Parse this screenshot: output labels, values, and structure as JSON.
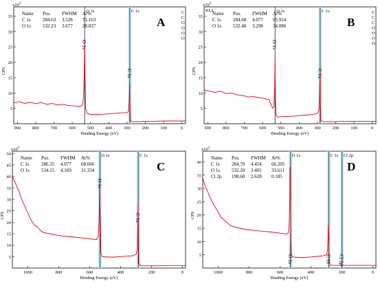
{
  "chart_data": [
    {
      "type": "line",
      "panel_letter": "A",
      "exponent_label": "x10",
      "exponent_power": "3",
      "ylabel": "CPS",
      "xlabel": "Binding Energy (eV)",
      "xlim": [
        920,
        -20
      ],
      "ylim": [
        0,
        38
      ],
      "xticks": [
        900,
        800,
        700,
        600,
        500,
        400,
        300,
        200,
        100,
        0
      ],
      "yticks": [
        5,
        10,
        15,
        20,
        25,
        30,
        35
      ],
      "table": {
        "headers": [
          "Name",
          "Pos.",
          "FWHM",
          "At%"
        ],
        "rows": [
          [
            "C 1s",
            "284.63",
            "3.528",
            "71.163"
          ],
          [
            "O 1s",
            "532.23",
            "3.677",
            "28.837"
          ]
        ]
      },
      "peak_markers": [
        {
          "label": "O 1s",
          "x": 532,
          "axis_label": "O 1s",
          "band": false
        },
        {
          "label": "C 1s",
          "x": 285,
          "axis_label": "C 1s",
          "band": true
        }
      ],
      "right_labels": [
        "C",
        "C",
        "O",
        "O",
        "O",
        "O"
      ],
      "series": [
        {
          "color": "#e8000b",
          "points": [
            [
              920,
              6.8
            ],
            [
              890,
              7.2
            ],
            [
              860,
              6.6
            ],
            [
              830,
              7.0
            ],
            [
              800,
              6.5
            ],
            [
              770,
              6.9
            ],
            [
              740,
              6.3
            ],
            [
              710,
              6.6
            ],
            [
              680,
              6.1
            ],
            [
              650,
              6.3
            ],
            [
              620,
              5.9
            ],
            [
              590,
              5.8
            ],
            [
              560,
              5.6
            ],
            [
              545,
              5.9
            ],
            [
              540,
              7.5
            ],
            [
              536,
              12.0
            ],
            [
              534,
              18.5
            ],
            [
              532,
              27.0
            ],
            [
              530,
              15.0
            ],
            [
              527,
              5.0
            ],
            [
              520,
              3.4
            ],
            [
              500,
              3.0
            ],
            [
              460,
              3.0
            ],
            [
              420,
              3.1
            ],
            [
              380,
              3.3
            ],
            [
              340,
              3.5
            ],
            [
              300,
              3.6
            ],
            [
              292,
              4.0
            ],
            [
              288,
              8.0
            ],
            [
              286,
              13.5
            ],
            [
              285,
              9.0
            ],
            [
              282,
              1.0
            ],
            [
              270,
              0.7
            ],
            [
              240,
              0.7
            ],
            [
              200,
              0.8
            ],
            [
              150,
              0.8
            ],
            [
              100,
              0.9
            ],
            [
              50,
              0.9
            ],
            [
              0,
              0.9
            ],
            [
              -20,
              0.9
            ]
          ]
        }
      ]
    },
    {
      "type": "line",
      "panel_letter": "B",
      "exponent_label": "x10",
      "exponent_power": "3",
      "ylabel": "CPS",
      "xlabel": "Binding Energy (eV)",
      "xlim": [
        920,
        -20
      ],
      "ylim": [
        0,
        38
      ],
      "xticks": [
        900,
        800,
        700,
        600,
        500,
        400,
        300,
        200,
        100,
        0
      ],
      "yticks": [
        5,
        10,
        15,
        20,
        25,
        30,
        35
      ],
      "table": {
        "headers": [
          "Name",
          "Pos.",
          "FWHM",
          "At%"
        ],
        "rows": [
          [
            "C 1s",
            "284.68",
            "4.077",
            "65.914"
          ],
          [
            "O 1s",
            "532.48",
            "3.298",
            "34.086"
          ]
        ]
      },
      "top_left_label": "KLL",
      "peak_markers": [
        {
          "label": "O 1s",
          "x": 532,
          "axis_label": "O 1s",
          "band": false
        },
        {
          "label": "C 1s",
          "x": 285,
          "axis_label": "C 1s",
          "band": true
        }
      ],
      "right_labels": [
        "C",
        "C",
        "C",
        "O",
        "O",
        "O",
        "O"
      ],
      "series": [
        {
          "color": "#e8000b",
          "points": [
            [
              920,
              11.0
            ],
            [
              890,
              10.6
            ],
            [
              860,
              10.2
            ],
            [
              830,
              10.6
            ],
            [
              800,
              9.8
            ],
            [
              770,
              10.0
            ],
            [
              740,
              9.4
            ],
            [
              710,
              9.2
            ],
            [
              680,
              8.7
            ],
            [
              650,
              8.8
            ],
            [
              620,
              8.5
            ],
            [
              590,
              8.2
            ],
            [
              565,
              7.8
            ],
            [
              552,
              6.0
            ],
            [
              545,
              5.0
            ],
            [
              538,
              5.5
            ],
            [
              534,
              12.0
            ],
            [
              532,
              22.0
            ],
            [
              530,
              8.0
            ],
            [
              527,
              3.0
            ],
            [
              520,
              2.2
            ],
            [
              490,
              2.3
            ],
            [
              450,
              2.4
            ],
            [
              410,
              2.6
            ],
            [
              370,
              2.8
            ],
            [
              330,
              3.0
            ],
            [
              300,
              3.3
            ],
            [
              292,
              4.5
            ],
            [
              288,
              10.0
            ],
            [
              286,
              17.0
            ],
            [
              285,
              13.0
            ],
            [
              282,
              1.0
            ],
            [
              270,
              0.7
            ],
            [
              240,
              0.7
            ],
            [
              200,
              0.7
            ],
            [
              150,
              0.8
            ],
            [
              100,
              0.8
            ],
            [
              50,
              0.8
            ],
            [
              0,
              0.8
            ],
            [
              -20,
              0.8
            ]
          ]
        }
      ]
    },
    {
      "type": "line",
      "panel_letter": "C",
      "exponent_label": "x10",
      "exponent_power": "3",
      "ylabel": "CPS",
      "xlabel": "Binding Energy (eV)",
      "xlim": [
        1100,
        -20
      ],
      "ylim": [
        0,
        51
      ],
      "xticks": [
        1000,
        800,
        600,
        400,
        200,
        0
      ],
      "yticks": [
        5,
        10,
        15,
        20,
        25,
        30,
        35,
        40,
        45,
        50
      ],
      "table": {
        "headers": [
          "Name",
          "Pos.",
          "FWHM",
          "At%"
        ],
        "rows": [
          [
            "C 1s",
            "286.35",
            "4.077",
            "68.666"
          ],
          [
            "O 1s",
            "534.15",
            "4.169",
            "31.334"
          ]
        ]
      },
      "peak_markers": [
        {
          "label": "O 1s",
          "x": 534,
          "axis_label": "O 1s",
          "band": true
        },
        {
          "label": "C 1s",
          "x": 286,
          "axis_label": "C 1s",
          "band": true
        }
      ],
      "right_labels": [],
      "series": [
        {
          "color": "#e8000b",
          "points": [
            [
              1100,
              40
            ],
            [
              1080,
              37
            ],
            [
              1060,
              34
            ],
            [
              1040,
              30
            ],
            [
              1020,
              27
            ],
            [
              1000,
              24
            ],
            [
              980,
              21
            ],
            [
              960,
              19
            ],
            [
              940,
              18
            ],
            [
              920,
              16.5
            ],
            [
              900,
              15.5
            ],
            [
              860,
              15
            ],
            [
              820,
              14.5
            ],
            [
              780,
              14
            ],
            [
              740,
              13.8
            ],
            [
              700,
              13.5
            ],
            [
              660,
              13.2
            ],
            [
              620,
              13
            ],
            [
              580,
              12.6
            ],
            [
              555,
              12.4
            ],
            [
              545,
              14
            ],
            [
              540,
              20
            ],
            [
              537,
              28
            ],
            [
              535,
              38
            ],
            [
              532,
              22
            ],
            [
              528,
              7
            ],
            [
              520,
              5.0
            ],
            [
              480,
              4.8
            ],
            [
              440,
              4.8
            ],
            [
              400,
              5.0
            ],
            [
              360,
              5.2
            ],
            [
              320,
              5.4
            ],
            [
              300,
              6.0
            ],
            [
              292,
              8.0
            ],
            [
              289,
              20
            ],
            [
              287,
              28
            ],
            [
              285,
              18
            ],
            [
              282,
              2.0
            ],
            [
              270,
              1.0
            ],
            [
              220,
              1.0
            ],
            [
              150,
              1.0
            ],
            [
              100,
              1.1
            ],
            [
              50,
              1.1
            ],
            [
              0,
              1.1
            ],
            [
              -20,
              1.1
            ]
          ]
        }
      ]
    },
    {
      "type": "line",
      "panel_letter": "D",
      "exponent_label": "x10",
      "exponent_power": "3",
      "ylabel": "CPS",
      "xlabel": "Binding Energy (eV)",
      "xlim": [
        1100,
        -20
      ],
      "ylim": [
        0,
        44
      ],
      "xticks": [
        1000,
        800,
        600,
        400,
        200,
        0
      ],
      "yticks": [
        5,
        10,
        15,
        20,
        25,
        30,
        35,
        40
      ],
      "table": {
        "headers": [
          "Name",
          "Pos.",
          "FWHM",
          "At%"
        ],
        "rows": [
          [
            "C 1s",
            "284.70",
            "4.454",
            "66.205"
          ],
          [
            "O 1s",
            "532.20",
            "3.401",
            "33.611"
          ],
          [
            "Cl 2p",
            "198.60",
            "2.628",
            "0.185"
          ]
        ]
      },
      "peak_markers": [
        {
          "label": "O 1s",
          "x": 532,
          "axis_label": "O 1s",
          "band": true
        },
        {
          "label": "C 1s",
          "x": 285,
          "axis_label": "C 1s",
          "band": true
        },
        {
          "label": "Cl 2p",
          "x": 199,
          "axis_label": "Cl 2p",
          "band": true
        }
      ],
      "right_labels": [],
      "series": [
        {
          "color": "#e8000b",
          "points": [
            [
              1100,
              34
            ],
            [
              1085,
              31
            ],
            [
              1070,
              29
            ],
            [
              1055,
              27
            ],
            [
              1040,
              25
            ],
            [
              1020,
              23
            ],
            [
              1000,
              21
            ],
            [
              980,
              19
            ],
            [
              960,
              18
            ],
            [
              940,
              17
            ],
            [
              920,
              16
            ],
            [
              900,
              15.5
            ],
            [
              860,
              15
            ],
            [
              820,
              14.5
            ],
            [
              780,
              14.3
            ],
            [
              740,
              14
            ],
            [
              700,
              13.8
            ],
            [
              660,
              13.6
            ],
            [
              620,
              13.3
            ],
            [
              580,
              13.0
            ],
            [
              555,
              12.8
            ],
            [
              545,
              13.5
            ],
            [
              540,
              18
            ],
            [
              537,
              26
            ],
            [
              535,
              38
            ],
            [
              533,
              30
            ],
            [
              530,
              10
            ],
            [
              526,
              5.0
            ],
            [
              520,
              4.2
            ],
            [
              480,
              4.0
            ],
            [
              440,
              4.0
            ],
            [
              400,
              4.2
            ],
            [
              360,
              4.4
            ],
            [
              320,
              4.6
            ],
            [
              300,
              5.0
            ],
            [
              292,
              7.0
            ],
            [
              289,
              12
            ],
            [
              287,
              16
            ],
            [
              285,
              10
            ],
            [
              282,
              2.0
            ],
            [
              270,
              1.0
            ],
            [
              240,
              1.0
            ],
            [
              205,
              1.0
            ],
            [
              200,
              1.5
            ],
            [
              198,
              1.2
            ],
            [
              190,
              1.0
            ],
            [
              150,
              1.0
            ],
            [
              100,
              1.0
            ],
            [
              50,
              1.0
            ],
            [
              0,
              1.0
            ],
            [
              -20,
              1.0
            ]
          ]
        }
      ]
    }
  ]
}
